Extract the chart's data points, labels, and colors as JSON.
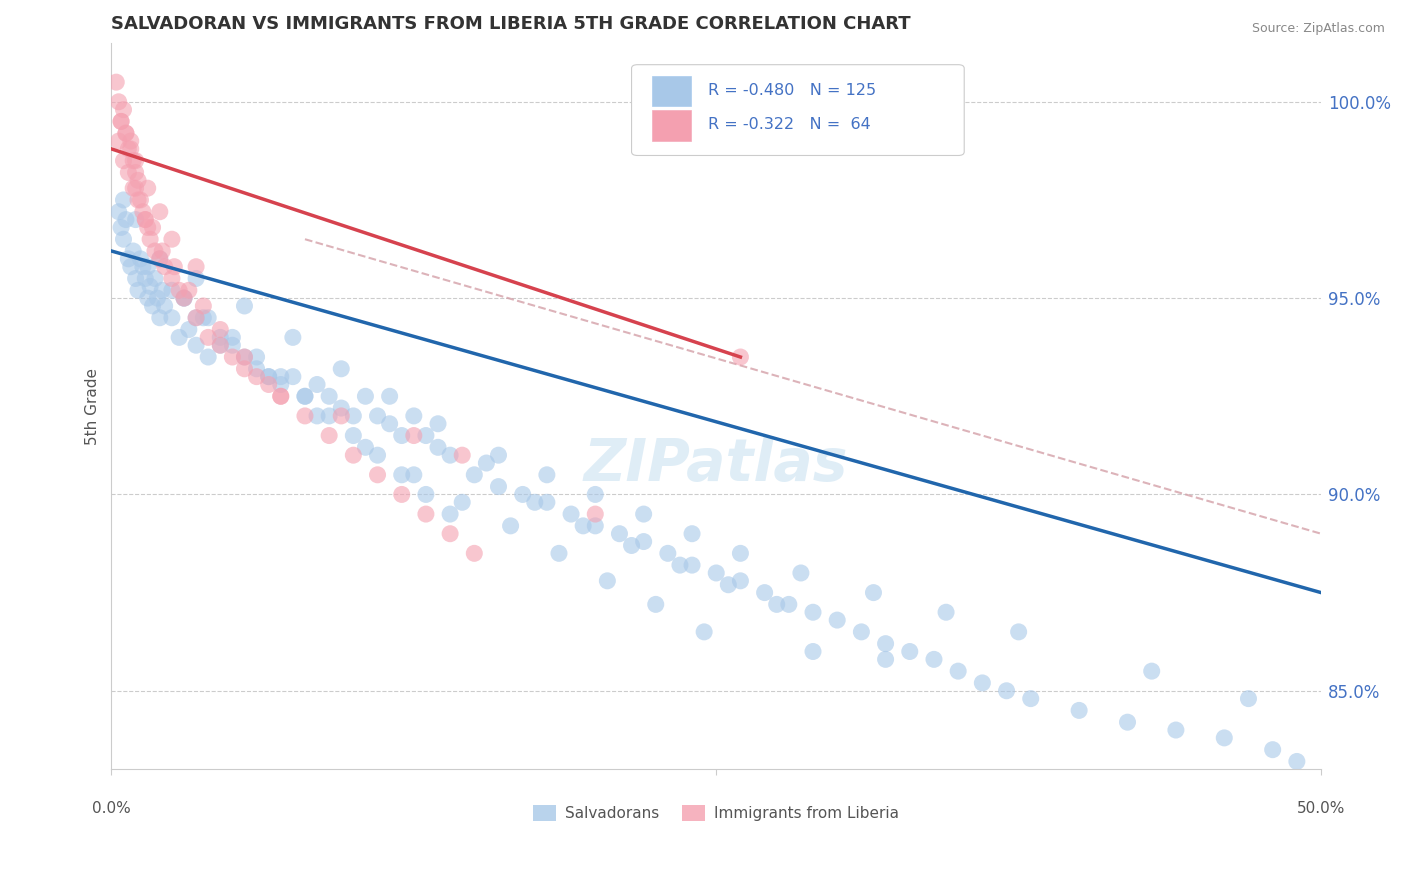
{
  "title": "SALVADORAN VS IMMIGRANTS FROM LIBERIA 5TH GRADE CORRELATION CHART",
  "source": "Source: ZipAtlas.com",
  "ylabel": "5th Grade",
  "yticks": [
    85.0,
    90.0,
    95.0,
    100.0
  ],
  "ytick_labels": [
    "85.0%",
    "90.0%",
    "95.0%",
    "100.0%"
  ],
  "xlim": [
    0.0,
    50.0
  ],
  "ylim": [
    83.0,
    101.5
  ],
  "blue_color": "#a8c8e8",
  "pink_color": "#f4a0b0",
  "blue_line_color": "#2166ac",
  "pink_line_color": "#d6424e",
  "dashed_line_color": "#d4a0a8",
  "watermark": "ZIPatlas",
  "blue_scatter_x": [
    0.3,
    0.4,
    0.5,
    0.5,
    0.6,
    0.7,
    0.8,
    0.9,
    1.0,
    1.0,
    1.1,
    1.2,
    1.3,
    1.4,
    1.5,
    1.6,
    1.7,
    1.8,
    1.9,
    2.0,
    2.1,
    2.2,
    2.5,
    2.8,
    3.0,
    3.2,
    3.5,
    3.8,
    4.0,
    4.5,
    5.0,
    5.5,
    6.0,
    6.5,
    7.0,
    7.5,
    8.0,
    8.5,
    9.0,
    9.5,
    10.0,
    10.5,
    11.0,
    11.5,
    12.0,
    12.5,
    13.0,
    13.5,
    14.0,
    15.0,
    16.0,
    17.0,
    18.0,
    19.0,
    20.0,
    21.0,
    22.0,
    23.0,
    24.0,
    25.0,
    26.0,
    27.0,
    28.0,
    29.0,
    30.0,
    31.0,
    32.0,
    33.0,
    34.0,
    35.0,
    36.0,
    37.0,
    38.0,
    40.0,
    42.0,
    44.0,
    46.0,
    48.0,
    49.0,
    2.0,
    3.0,
    4.0,
    5.0,
    6.0,
    7.0,
    8.0,
    9.0,
    10.0,
    11.0,
    12.0,
    13.0,
    14.0,
    15.5,
    17.5,
    19.5,
    21.5,
    23.5,
    25.5,
    27.5,
    3.5,
    5.5,
    7.5,
    9.5,
    11.5,
    13.5,
    16.0,
    18.0,
    20.0,
    22.0,
    24.0,
    26.0,
    28.5,
    31.5,
    34.5,
    37.5,
    43.0,
    47.0,
    1.5,
    2.5,
    3.5,
    4.5,
    6.5,
    8.5,
    10.5,
    12.5,
    14.5,
    16.5,
    18.5,
    20.5,
    22.5,
    24.5,
    29.0,
    32.0
  ],
  "blue_scatter_y": [
    97.2,
    96.8,
    97.5,
    96.5,
    97.0,
    96.0,
    95.8,
    96.2,
    97.0,
    95.5,
    95.2,
    96.0,
    95.8,
    95.5,
    95.0,
    95.3,
    94.8,
    95.5,
    95.0,
    94.5,
    95.2,
    94.8,
    94.5,
    94.0,
    95.0,
    94.2,
    93.8,
    94.5,
    93.5,
    94.0,
    93.8,
    93.5,
    93.2,
    93.0,
    92.8,
    93.0,
    92.5,
    92.8,
    92.5,
    92.2,
    92.0,
    92.5,
    92.0,
    91.8,
    91.5,
    92.0,
    91.5,
    91.2,
    91.0,
    90.5,
    90.2,
    90.0,
    89.8,
    89.5,
    89.2,
    89.0,
    88.8,
    88.5,
    88.2,
    88.0,
    87.8,
    87.5,
    87.2,
    87.0,
    86.8,
    86.5,
    86.2,
    86.0,
    85.8,
    85.5,
    85.2,
    85.0,
    84.8,
    84.5,
    84.2,
    84.0,
    83.8,
    83.5,
    83.2,
    96.0,
    95.0,
    94.5,
    94.0,
    93.5,
    93.0,
    92.5,
    92.0,
    91.5,
    91.0,
    90.5,
    90.0,
    89.5,
    90.8,
    89.8,
    89.2,
    88.7,
    88.2,
    87.7,
    87.2,
    95.5,
    94.8,
    94.0,
    93.2,
    92.5,
    91.8,
    91.0,
    90.5,
    90.0,
    89.5,
    89.0,
    88.5,
    88.0,
    87.5,
    87.0,
    86.5,
    85.5,
    84.8,
    95.8,
    95.2,
    94.5,
    93.8,
    93.0,
    92.0,
    91.2,
    90.5,
    89.8,
    89.2,
    88.5,
    87.8,
    87.2,
    86.5,
    86.0,
    85.8
  ],
  "pink_scatter_x": [
    0.2,
    0.3,
    0.4,
    0.5,
    0.6,
    0.7,
    0.8,
    0.9,
    1.0,
    1.0,
    1.1,
    1.2,
    1.3,
    1.4,
    1.5,
    1.6,
    1.8,
    2.0,
    2.2,
    2.5,
    2.8,
    3.0,
    3.5,
    4.0,
    4.5,
    5.0,
    5.5,
    6.0,
    6.5,
    7.0,
    8.0,
    9.0,
    10.0,
    11.0,
    12.0,
    13.0,
    14.0,
    15.0,
    0.3,
    0.5,
    0.7,
    0.9,
    1.1,
    1.4,
    1.7,
    2.1,
    2.6,
    3.2,
    3.8,
    4.5,
    5.5,
    7.0,
    9.5,
    12.5,
    14.5,
    20.0,
    26.0,
    0.4,
    0.6,
    0.8,
    1.0,
    1.5,
    2.0,
    2.5,
    3.5
  ],
  "pink_scatter_y": [
    100.5,
    100.0,
    99.5,
    99.8,
    99.2,
    98.8,
    99.0,
    98.5,
    98.2,
    97.8,
    98.0,
    97.5,
    97.2,
    97.0,
    96.8,
    96.5,
    96.2,
    96.0,
    95.8,
    95.5,
    95.2,
    95.0,
    94.5,
    94.0,
    93.8,
    93.5,
    93.2,
    93.0,
    92.8,
    92.5,
    92.0,
    91.5,
    91.0,
    90.5,
    90.0,
    89.5,
    89.0,
    88.5,
    99.0,
    98.5,
    98.2,
    97.8,
    97.5,
    97.0,
    96.8,
    96.2,
    95.8,
    95.2,
    94.8,
    94.2,
    93.5,
    92.5,
    92.0,
    91.5,
    91.0,
    89.5,
    93.5,
    99.5,
    99.2,
    98.8,
    98.5,
    97.8,
    97.2,
    96.5,
    95.8
  ],
  "blue_line_x": [
    0.0,
    50.0
  ],
  "blue_line_y": [
    96.2,
    87.5
  ],
  "pink_line_x": [
    0.0,
    26.0
  ],
  "pink_line_y": [
    98.8,
    93.5
  ],
  "dashed_line_x": [
    8.0,
    50.0
  ],
  "dashed_line_y": [
    96.5,
    89.0
  ]
}
